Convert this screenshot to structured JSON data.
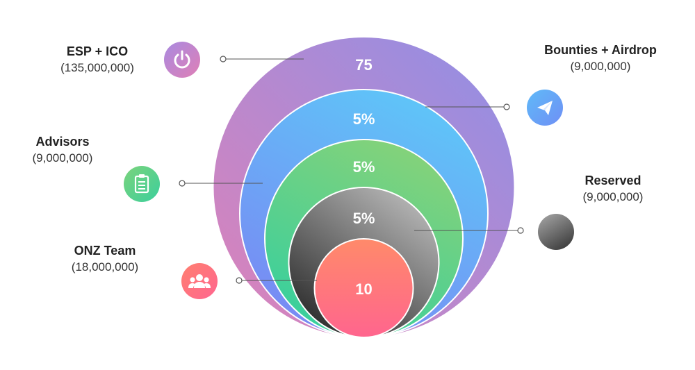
{
  "segments": [
    {
      "key": "esp",
      "name": "ESP + ICO",
      "amount": "(135,000,000)",
      "ring_label": "75",
      "icon": "power-icon"
    },
    {
      "key": "bounties",
      "name": "Bounties + Airdrop",
      "amount": "(9,000,000)",
      "ring_label": "5%",
      "icon": "paper-plane-icon"
    },
    {
      "key": "advisors",
      "name": "Advisors",
      "amount": "(9,000,000)",
      "ring_label": "5%",
      "icon": "clipboard-icon"
    },
    {
      "key": "reserved",
      "name": "Reserved",
      "amount": "(9,000,000)",
      "ring_label": "5%",
      "icon": "sphere-icon"
    },
    {
      "key": "team",
      "name": "ONZ Team",
      "amount": "(18,000,000)",
      "ring_label": "10",
      "icon": "team-icon"
    }
  ],
  "colors": {
    "esp_top": "#9b8be0",
    "esp_bottom": "#d27fc0",
    "bounties_top": "#5fc3f7",
    "bounties_bottom": "#7b8ef5",
    "advisors_top": "#7fd07a",
    "advisors_bottom": "#3ecfa0",
    "reserved_top": "#a8a8a8",
    "reserved_bottom": "#3c3c3c",
    "team_top": "#ff7f6e",
    "team_bottom": "#ff6a8c"
  }
}
